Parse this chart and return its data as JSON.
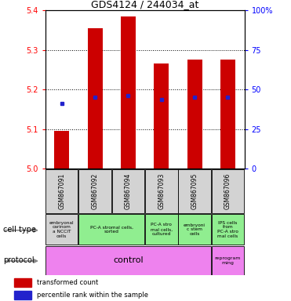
{
  "title": "GDS4124 / 244034_at",
  "samples": [
    "GSM867091",
    "GSM867092",
    "GSM867094",
    "GSM867093",
    "GSM867095",
    "GSM867096"
  ],
  "bar_bottoms": [
    5.0,
    5.0,
    5.0,
    5.0,
    5.0,
    5.0
  ],
  "bar_tops": [
    5.095,
    5.355,
    5.385,
    5.265,
    5.275,
    5.275
  ],
  "blue_dot_y": [
    5.165,
    5.18,
    5.185,
    5.175,
    5.18,
    5.18
  ],
  "ylim": [
    5.0,
    5.4
  ],
  "yticks_left": [
    5.0,
    5.1,
    5.2,
    5.3,
    5.4
  ],
  "yticks_right": [
    0,
    25,
    50,
    75,
    100
  ],
  "ytick_labels_right": [
    "0",
    "25",
    "50",
    "75",
    "100%"
  ],
  "bar_color": "#cc0000",
  "blue_color": "#2222cc",
  "cell_data": [
    [
      0,
      1,
      "embryonal\ncarinom\na NCCIT\ncells",
      "#d3d3d3"
    ],
    [
      1,
      2,
      "PC-A stromal cells,\nsorted",
      "#90ee90"
    ],
    [
      3,
      1,
      "PC-A stro\nmal cells,\ncultured",
      "#90ee90"
    ],
    [
      4,
      1,
      "embryoni\nc stem\ncells",
      "#90ee90"
    ],
    [
      5,
      1,
      "IPS cells\nfrom\nPC-A stro\nmal cells",
      "#90ee90"
    ]
  ],
  "legend_red_label": "transformed count",
  "legend_blue_label": "percentile rank within the sample",
  "cell_type_label": "cell type",
  "protocol_label": "protocol",
  "bg_color": "#ffffff"
}
